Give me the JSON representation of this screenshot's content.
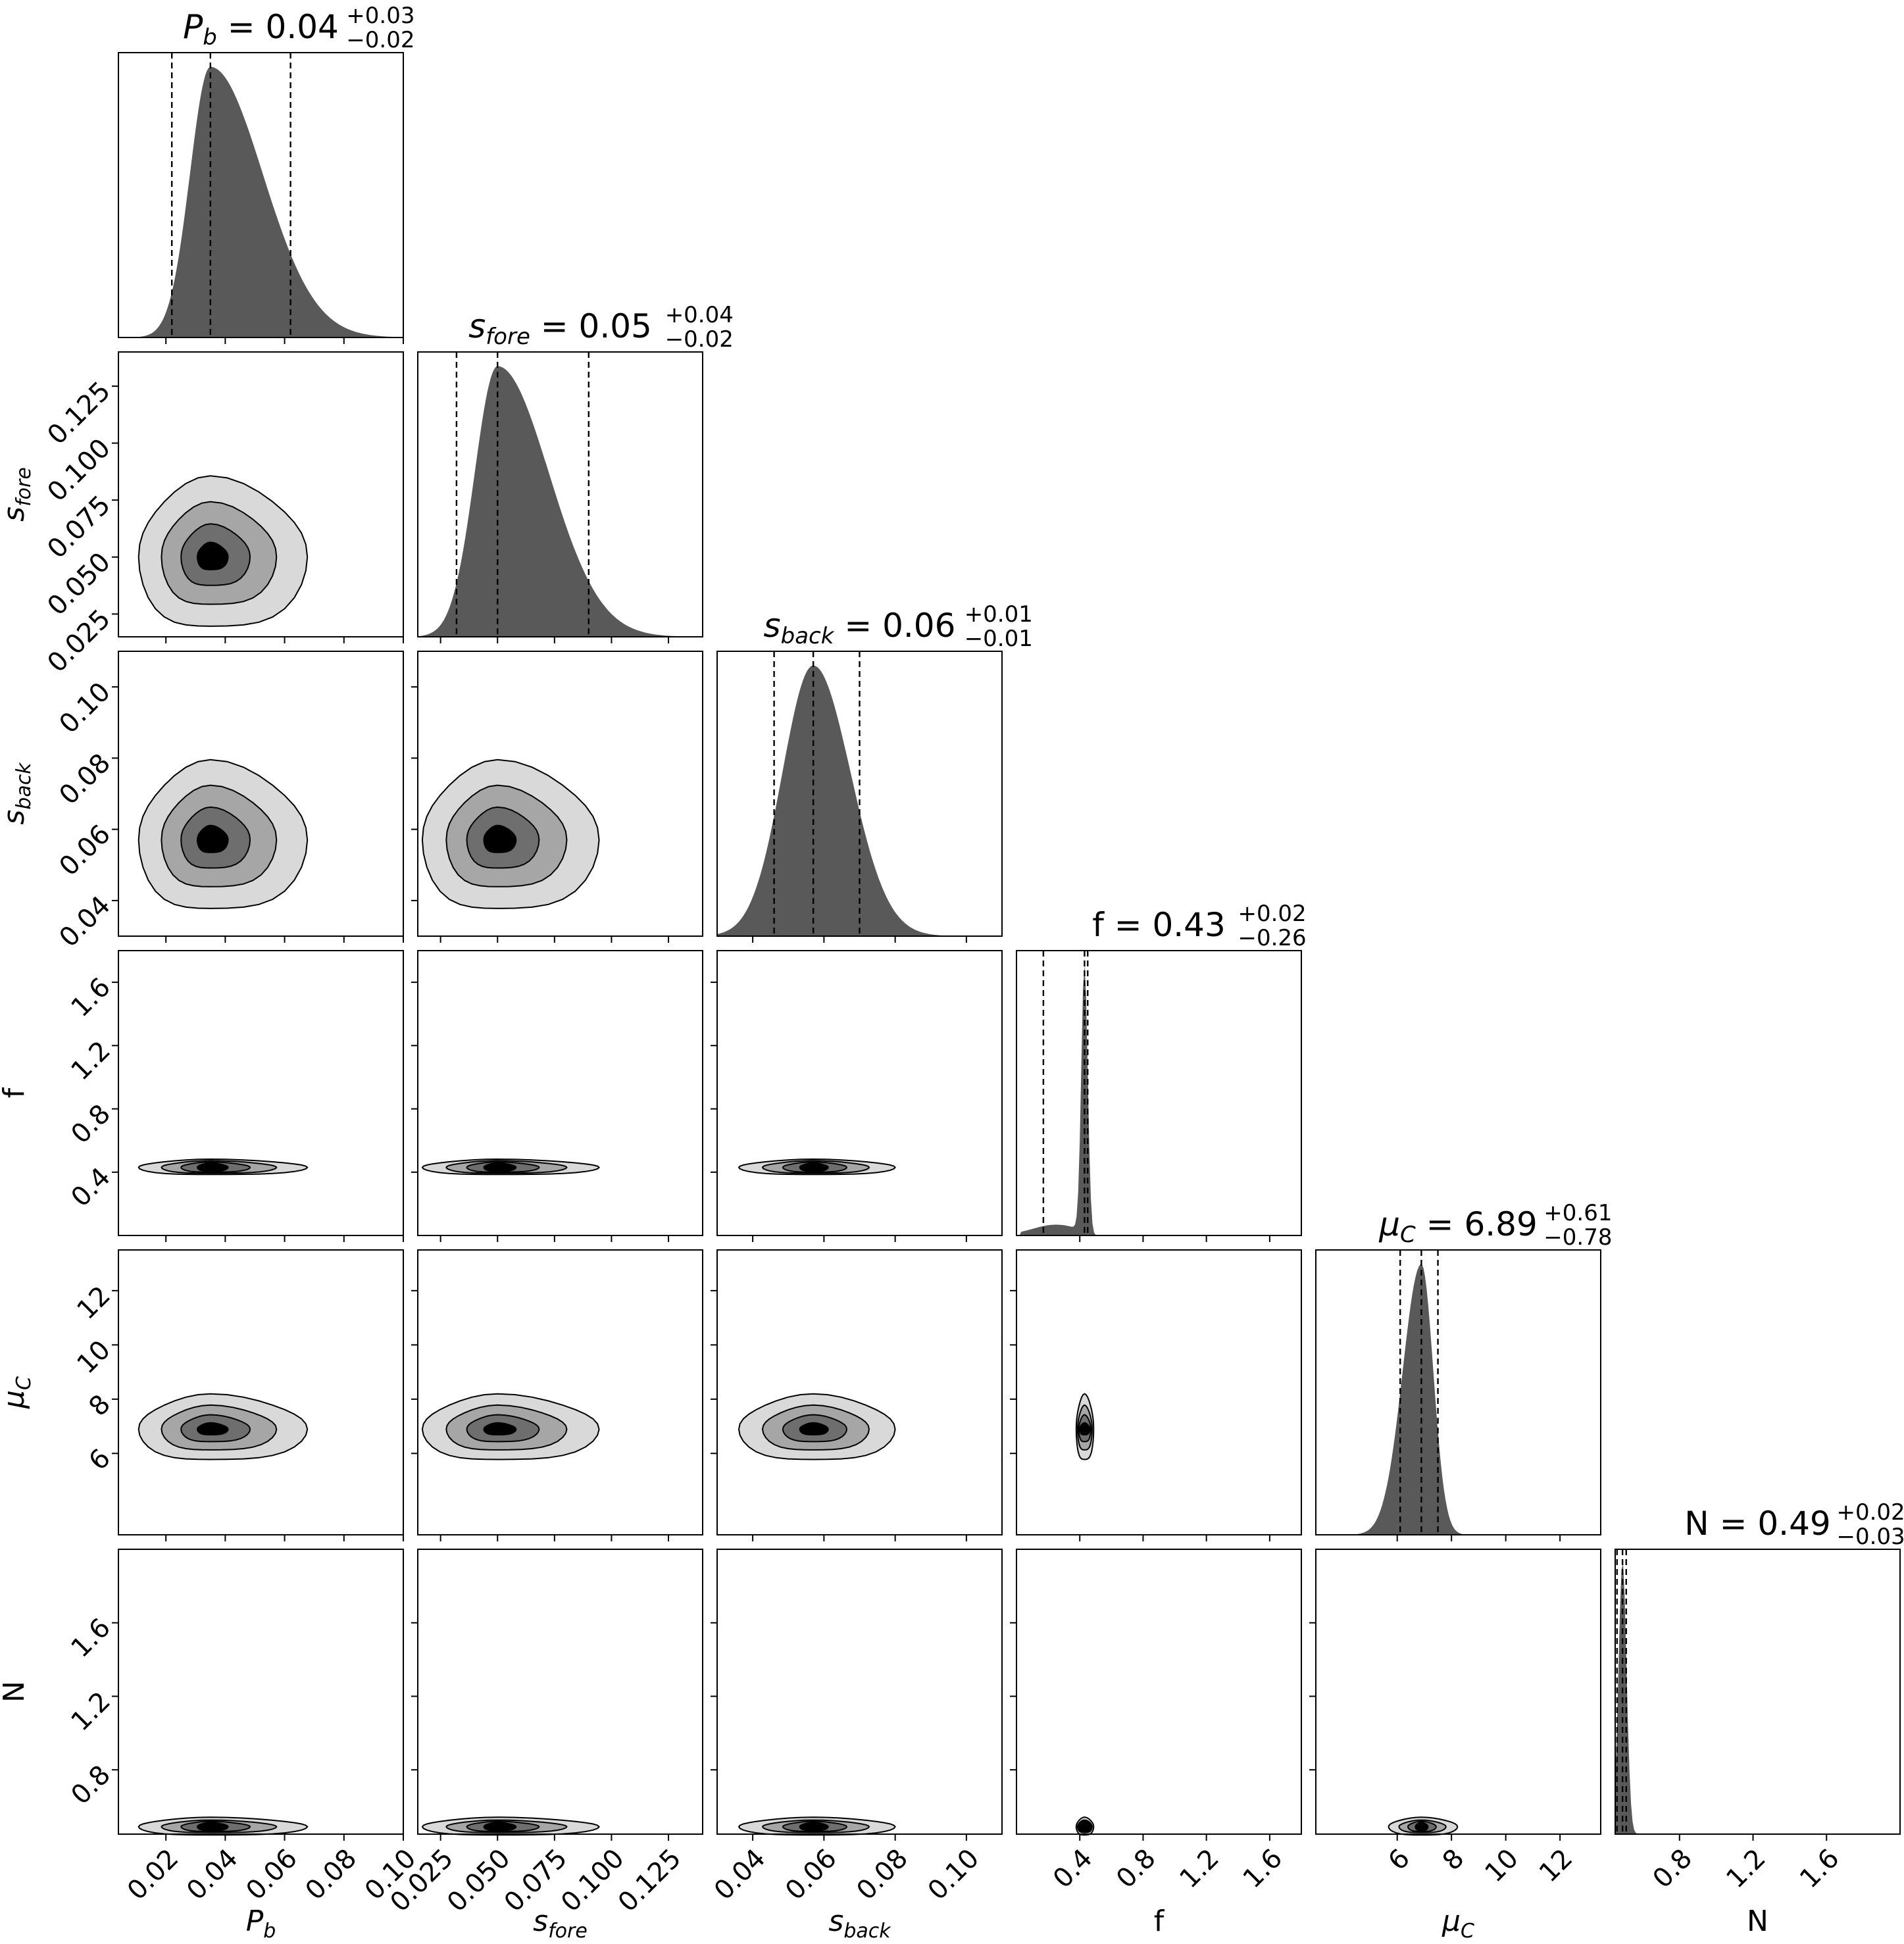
{
  "chart_data": {
    "type": "corner",
    "params": [
      {
        "label": "P_b",
        "title": [
          "P",
          "b",
          " = 0.04",
          "+0.03",
          "−0.02"
        ],
        "range": [
          0.004,
          0.1
        ],
        "ticks": [
          0.02,
          0.04,
          0.06,
          0.08,
          0.1
        ],
        "ticklabels": [
          "0.02",
          "0.04",
          "0.06",
          "0.08",
          "0.10"
        ],
        "median": 0.035,
        "q16": 0.022,
        "q84": 0.062,
        "spread": 0.011,
        "skew": 1.6,
        "y_ticklabels": false
      },
      {
        "label": "s_fore",
        "title": [
          "s",
          "fore",
          " = 0.05",
          "+0.04",
          "−0.02"
        ],
        "range": [
          0.015,
          0.14
        ],
        "ticks": [
          0.025,
          0.05,
          0.075,
          0.1,
          0.125
        ],
        "ticklabels": [
          "0.025",
          "0.050",
          "0.075",
          "0.100",
          "0.125"
        ],
        "median": 0.05,
        "q16": 0.032,
        "q84": 0.09,
        "spread": 0.015,
        "skew": 1.5,
        "y_ticklabels": true
      },
      {
        "label": "s_back",
        "title": [
          "s",
          "back",
          " = 0.06",
          "+0.01",
          "−0.01"
        ],
        "range": [
          0.03,
          0.11
        ],
        "ticks": [
          0.04,
          0.06,
          0.08,
          0.1
        ],
        "ticklabels": [
          "0.04",
          "0.06",
          "0.08",
          "0.10"
        ],
        "median": 0.057,
        "q16": 0.046,
        "q84": 0.07,
        "spread": 0.0095,
        "skew": 1.1,
        "y_ticklabels": true
      },
      {
        "label": "f",
        "title": [
          "f",
          "",
          " = 0.43",
          "+0.02",
          "−0.26"
        ],
        "range": [
          0.0,
          1.8
        ],
        "ticks": [
          0.4,
          0.8,
          1.2,
          1.6
        ],
        "ticklabels": [
          "0.4",
          "0.8",
          "1.2",
          "1.6"
        ],
        "median": 0.43,
        "q16": 0.17,
        "q84": 0.45,
        "spread": 0.02,
        "skew": 1.0,
        "y_ticklabels": true
      },
      {
        "label": "mu_C",
        "title": [
          "μ",
          "C",
          " = 6.89",
          "+0.61",
          "−0.78"
        ],
        "range": [
          3.0,
          13.5
        ],
        "ticks": [
          6,
          8,
          10,
          12
        ],
        "ticklabels": [
          "6",
          "8",
          "10",
          "12"
        ],
        "median": 6.89,
        "q16": 6.11,
        "q84": 7.5,
        "spread": 0.55,
        "skew": 0.8,
        "y_ticklabels": true
      },
      {
        "label": "N",
        "title": [
          "N",
          "",
          " = 0.49",
          "+0.02",
          "−0.03"
        ],
        "range": [
          0.45,
          2.0
        ],
        "ticks": [
          0.8,
          1.2,
          1.6
        ],
        "ticklabels": [
          "0.8",
          "1.2",
          "1.6"
        ],
        "median": 0.49,
        "q16": 0.46,
        "q84": 0.51,
        "spread": 0.022,
        "skew": 1.0,
        "y_ticklabels": true
      }
    ],
    "axis_labels": [
      "P_b",
      "s_fore",
      "s_back",
      "f",
      "μ_C",
      "N"
    ],
    "contour_levels": 4,
    "colors": {
      "hist": "#595959",
      "contour_fills": [
        "#d9d9d9",
        "#a6a6a6",
        "#6e6e6e",
        "#000000"
      ]
    }
  }
}
